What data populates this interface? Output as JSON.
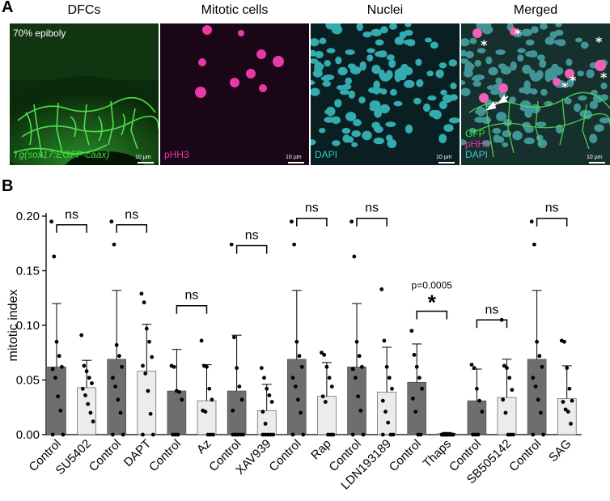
{
  "figure": {
    "panel_a_letter": "A",
    "panel_b_letter": "B",
    "columns": [
      "DFCs",
      "Mitotic cells",
      "Nuclei",
      "Merged"
    ],
    "overlay_stage": "70% epiboly",
    "overlay_transgene": "Tg(sox17:EGFP-caax)",
    "overlay_phh3": "pHH3",
    "overlay_dapi": "DAPI",
    "overlay_merge": [
      "GFP",
      "pHH3",
      "DAPI"
    ],
    "scale_label": "10 µm",
    "colors": {
      "gfp": "#2fd12f",
      "phh3": "#e0309a",
      "dapi": "#3cc4c8",
      "dark_bar": "#6e6e6e",
      "light_bar": "#ececec"
    }
  },
  "chart_data": {
    "type": "bar",
    "ylabel": "mitotic index",
    "ylim": [
      0,
      0.2
    ],
    "yticks": [
      "0.00",
      "0.05",
      "0.10",
      "0.15",
      "0.20"
    ],
    "categories": [
      "Control",
      "SU5402",
      "Control",
      "DAPT",
      "Control",
      "Az",
      "Control",
      "XAV939",
      "Control",
      "Rap",
      "Control",
      "LDN193189",
      "Control",
      "Thaps",
      "Control",
      "SB505142",
      "Control",
      "SAG"
    ],
    "shades": [
      "dark",
      "light",
      "dark",
      "light",
      "dark",
      "light",
      "dark",
      "light",
      "dark",
      "light",
      "dark",
      "light",
      "dark",
      "light",
      "dark",
      "light",
      "dark",
      "light"
    ],
    "means": [
      0.062,
      0.043,
      0.069,
      0.058,
      0.04,
      0.031,
      0.04,
      0.022,
      0.069,
      0.035,
      0.062,
      0.039,
      0.048,
      0.001,
      0.031,
      0.034,
      0.069,
      0.033
    ],
    "sd": [
      0.058,
      0.025,
      0.063,
      0.043,
      0.038,
      0.033,
      0.051,
      0.024,
      0.063,
      0.031,
      0.058,
      0.041,
      0.035,
      0.001,
      0.029,
      0.035,
      0.063,
      0.03
    ],
    "points": [
      [
        0.195,
        0.163,
        0.085,
        0.072,
        0.062,
        0.06,
        0.052,
        0.035,
        0.022,
        0,
        0
      ],
      [
        0.091,
        0.063,
        0.058,
        0.052,
        0.047,
        0.042,
        0.036,
        0.028,
        0.02,
        0.012
      ],
      [
        0.195,
        0.174,
        0.082,
        0.072,
        0.062,
        0.052,
        0.044,
        0.032,
        0.02,
        0,
        0
      ],
      [
        0.129,
        0.121,
        0.097,
        0.085,
        0.071,
        0.063,
        0.056,
        0.04,
        0.019,
        0,
        0
      ],
      [
        0.063,
        0.062,
        0.04,
        0.039,
        0.032,
        0,
        0,
        0
      ],
      [
        0.086,
        0.063,
        0.062,
        0.042,
        0.032,
        0.022,
        0.021,
        0,
        0,
        0
      ],
      [
        0.174,
        0.089,
        0.061,
        0.044,
        0.032,
        0.022,
        0,
        0,
        0,
        0,
        0,
        0
      ],
      [
        0.061,
        0.052,
        0.042,
        0.036,
        0.03,
        0.021,
        0.01,
        0,
        0,
        0,
        0,
        0
      ],
      [
        0.195,
        0.174,
        0.085,
        0.072,
        0.062,
        0.052,
        0.044,
        0.032,
        0.02,
        0,
        0
      ],
      [
        0.075,
        0.073,
        0.062,
        0.052,
        0.044,
        0.035,
        0.03,
        0,
        0,
        0
      ],
      [
        0.195,
        0.163,
        0.085,
        0.072,
        0.062,
        0.06,
        0.052,
        0.035,
        0.022,
        0,
        0
      ],
      [
        0.133,
        0.086,
        0.062,
        0.052,
        0.042,
        0.031,
        0.021,
        0.011,
        0,
        0,
        0
      ],
      [
        0.095,
        0.073,
        0.062,
        0.052,
        0.042,
        0.033,
        0.021,
        0,
        0
      ],
      [
        0,
        0,
        0,
        0,
        0,
        0,
        0,
        0,
        0,
        0
      ],
      [
        0.064,
        0.061,
        0.042,
        0.031,
        0.021,
        0,
        0,
        0
      ],
      [
        0.105,
        0.063,
        0.061,
        0.052,
        0.041,
        0.032,
        0.02,
        0,
        0,
        0
      ],
      [
        0.195,
        0.174,
        0.085,
        0.072,
        0.062,
        0.052,
        0.044,
        0.032,
        0.02,
        0,
        0
      ],
      [
        0.086,
        0.085,
        0.061,
        0.042,
        0.031,
        0.03,
        0.023,
        0.021,
        0.01
      ]
    ],
    "comparisons": [
      {
        "pair": [
          0,
          1
        ],
        "label": "ns",
        "y": 0.192
      },
      {
        "pair": [
          2,
          3
        ],
        "label": "ns",
        "y": 0.192
      },
      {
        "pair": [
          4,
          5
        ],
        "label": "ns",
        "y": 0.118
      },
      {
        "pair": [
          6,
          7
        ],
        "label": "ns",
        "y": 0.173
      },
      {
        "pair": [
          8,
          9
        ],
        "label": "ns",
        "y": 0.198
      },
      {
        "pair": [
          10,
          11
        ],
        "label": "ns",
        "y": 0.198
      },
      {
        "pair": [
          12,
          13
        ],
        "label": "*",
        "y": 0.113,
        "note": "p=0.0005"
      },
      {
        "pair": [
          14,
          15
        ],
        "label": "ns",
        "y": 0.105
      },
      {
        "pair": [
          16,
          17
        ],
        "label": "ns",
        "y": 0.198
      }
    ]
  }
}
